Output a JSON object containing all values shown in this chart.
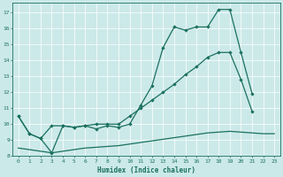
{
  "xlabel": "Humidex (Indice chaleur)",
  "xlim": [
    -0.5,
    23.5
  ],
  "ylim": [
    8,
    17.6
  ],
  "yticks": [
    8,
    9,
    10,
    11,
    12,
    13,
    14,
    15,
    16,
    17
  ],
  "xticks": [
    0,
    1,
    2,
    3,
    4,
    5,
    6,
    7,
    8,
    9,
    10,
    11,
    12,
    13,
    14,
    15,
    16,
    17,
    18,
    19,
    20,
    21,
    22,
    23
  ],
  "background_color": "#cce9e9",
  "grid_color": "#ffffff",
  "line_color": "#1a7060",
  "series1_x": [
    0,
    1,
    2,
    3,
    4,
    5,
    6,
    7,
    8,
    9,
    10,
    11,
    12,
    13,
    14,
    15,
    16,
    17,
    18,
    19,
    20,
    21
  ],
  "series1_y": [
    10.5,
    9.4,
    9.1,
    8.2,
    9.9,
    9.8,
    9.9,
    9.7,
    9.9,
    9.8,
    10.0,
    11.2,
    12.4,
    14.8,
    16.1,
    15.9,
    16.1,
    16.1,
    17.2,
    17.2,
    14.5,
    11.9
  ],
  "series2_x": [
    0,
    1,
    2,
    3,
    4,
    5,
    6,
    7,
    8,
    9,
    10,
    11,
    12,
    13,
    14,
    15,
    16,
    17,
    18,
    19,
    20,
    21
  ],
  "series2_y": [
    10.5,
    9.4,
    9.1,
    9.9,
    9.9,
    9.8,
    9.9,
    10.0,
    10.0,
    10.0,
    10.5,
    11.0,
    11.5,
    12.0,
    12.5,
    13.1,
    13.6,
    14.2,
    14.5,
    14.5,
    12.8,
    10.8
  ],
  "series3_x": [
    0,
    1,
    2,
    3,
    4,
    5,
    6,
    7,
    8,
    9,
    10,
    11,
    12,
    13,
    14,
    15,
    16,
    17,
    18,
    19,
    20,
    21,
    22,
    23
  ],
  "series3_y": [
    8.5,
    8.4,
    8.3,
    8.2,
    8.3,
    8.4,
    8.5,
    8.55,
    8.6,
    8.65,
    8.75,
    8.85,
    8.95,
    9.05,
    9.15,
    9.25,
    9.35,
    9.45,
    9.5,
    9.55,
    9.5,
    9.45,
    9.4,
    9.4
  ]
}
